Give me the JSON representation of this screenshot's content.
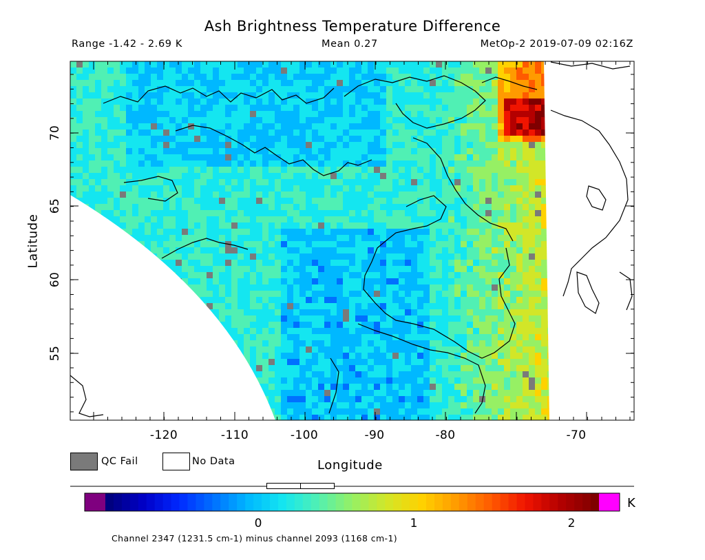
{
  "header": {
    "title": "Ash Brightness Temperature Difference",
    "range": "Range -1.42 - 2.69 K",
    "mean": "Mean 0.27",
    "satellite": "MetOp-2 2019-07-09 02:16Z"
  },
  "map": {
    "lon_range": [
      -130,
      -62
    ],
    "lat_range": [
      50.5,
      74.9
    ],
    "xlabel": "Longitude",
    "ylabel": "Latitude",
    "x_ticks": [
      "-120",
      "-110",
      "-100",
      "-90",
      "-80",
      "-70"
    ],
    "y_ticks": [
      "70",
      "65",
      "60",
      "55"
    ],
    "qc_fail_color": "#7a7a7a",
    "no_data_color": "#ffffff"
  },
  "legend": {
    "qc_fail": "QC Fail",
    "no_data": "No Data"
  },
  "colorbar": {
    "labels": [
      "0",
      "1",
      "2"
    ],
    "unit": "K",
    "under_color": "#7f007f",
    "over_color": "#ff00ff",
    "colors": [
      "#00007f",
      "#0000c8",
      "#0028ff",
      "#0070ff",
      "#00b8ff",
      "#14e6f0",
      "#50f0b4",
      "#96f064",
      "#d2e628",
      "#ffd200",
      "#ff9b00",
      "#ff5a00",
      "#f01400",
      "#b40000",
      "#7f0000"
    ]
  },
  "footnote": "Channel 2347 (1231.5 cm-1) minus channel 2093 (1168 cm-1)"
}
